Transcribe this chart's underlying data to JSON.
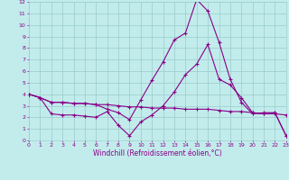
{
  "title": "",
  "xlabel": "Windchill (Refroidissement éolien,°C)",
  "ylabel": "",
  "background_color": "#c2ecec",
  "grid_color": "#a0d0d0",
  "line_color": "#880088",
  "x": [
    0,
    1,
    2,
    3,
    4,
    5,
    6,
    7,
    8,
    9,
    10,
    11,
    12,
    13,
    14,
    15,
    16,
    17,
    18,
    19,
    20,
    21,
    22,
    23
  ],
  "line1": [
    4.0,
    3.7,
    3.3,
    3.3,
    3.2,
    3.2,
    3.1,
    3.1,
    3.0,
    2.9,
    2.9,
    2.8,
    2.8,
    2.8,
    2.7,
    2.7,
    2.7,
    2.6,
    2.5,
    2.5,
    2.4,
    2.3,
    2.3,
    2.2
  ],
  "line2": [
    4.0,
    3.7,
    2.3,
    2.2,
    2.2,
    2.1,
    2.0,
    2.5,
    1.3,
    0.4,
    1.6,
    2.2,
    3.0,
    4.2,
    5.7,
    6.6,
    8.3,
    5.3,
    4.8,
    3.7,
    2.4,
    2.3,
    2.4,
    0.4
  ],
  "line3": [
    4.0,
    3.7,
    3.3,
    3.3,
    3.2,
    3.2,
    3.1,
    2.7,
    2.4,
    1.8,
    3.5,
    5.2,
    6.8,
    8.7,
    9.3,
    12.2,
    11.2,
    8.5,
    5.3,
    3.3,
    2.3,
    2.4,
    2.4,
    0.4
  ],
  "ylim": [
    0,
    12
  ],
  "xlim": [
    0,
    23
  ],
  "yticks": [
    0,
    1,
    2,
    3,
    4,
    5,
    6,
    7,
    8,
    9,
    10,
    11,
    12
  ],
  "xticks": [
    0,
    1,
    2,
    3,
    4,
    5,
    6,
    7,
    8,
    9,
    10,
    11,
    12,
    13,
    14,
    15,
    16,
    17,
    18,
    19,
    20,
    21,
    22,
    23
  ]
}
